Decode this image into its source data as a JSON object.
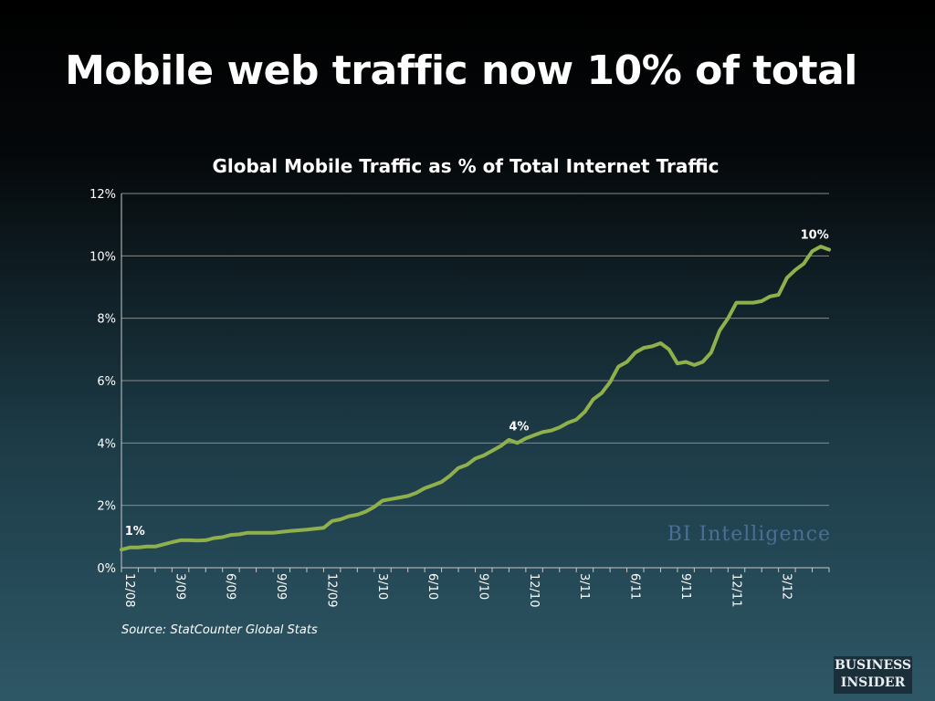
{
  "slide": {
    "title": "Mobile web traffic now 10% of total",
    "source": "Source: StatCounter Global Stats",
    "watermark": "BI Intelligence",
    "logo_line1": "BUSINESS",
    "logo_line2": "INSIDER"
  },
  "chart_data": {
    "type": "line",
    "title": "Global Mobile Traffic as % of Total Internet Traffic",
    "xlabel": "",
    "ylabel": "",
    "ylim": [
      0,
      12
    ],
    "y_ticks": [
      "0%",
      "2%",
      "4%",
      "6%",
      "8%",
      "10%",
      "12%"
    ],
    "x_ticks": [
      {
        "label": "12/08",
        "index": 0
      },
      {
        "label": "3/09",
        "index": 3
      },
      {
        "label": "6/09",
        "index": 6
      },
      {
        "label": "9/09",
        "index": 9
      },
      {
        "label": "12/09",
        "index": 12
      },
      {
        "label": "3/10",
        "index": 15
      },
      {
        "label": "6/10",
        "index": 18
      },
      {
        "label": "9/10",
        "index": 21
      },
      {
        "label": "12/10",
        "index": 24
      },
      {
        "label": "3/11",
        "index": 27
      },
      {
        "label": "6/11",
        "index": 30
      },
      {
        "label": "9/11",
        "index": 33
      },
      {
        "label": "12/11",
        "index": 36
      },
      {
        "label": "3/12",
        "index": 39
      }
    ],
    "x_max_index": 42,
    "grid": true,
    "line_color": "#8fb04a",
    "series": [
      {
        "x": [
          0,
          0.5,
          1,
          1.5,
          2,
          2.5,
          3,
          3.5,
          4,
          4.5,
          5,
          5.5,
          6,
          6.5,
          7,
          7.5,
          8,
          8.5,
          9,
          9.5,
          10,
          10.5,
          11,
          11.5,
          12,
          12.5,
          13,
          13.5,
          14,
          14.5,
          15,
          15.5,
          16,
          16.5,
          17,
          17.5,
          18,
          18.5,
          19,
          19.5,
          20,
          20.5,
          21,
          21.5,
          22,
          22.5,
          23,
          23.5,
          24,
          24.5,
          25,
          25.5,
          26,
          26.5,
          27,
          27.5,
          28,
          28.5,
          29,
          29.5,
          30,
          30.5,
          31,
          31.5,
          32,
          32.5,
          33,
          33.5,
          34,
          34.5,
          35,
          35.5,
          36,
          36.5,
          37,
          37.5,
          38,
          38.5,
          39,
          39.5,
          40,
          40.5,
          41,
          41.5,
          42
        ],
        "values": [
          0.58,
          0.65,
          0.65,
          0.68,
          0.68,
          0.75,
          0.82,
          0.88,
          0.88,
          0.87,
          0.88,
          0.95,
          0.98,
          1.05,
          1.07,
          1.12,
          1.12,
          1.12,
          1.12,
          1.15,
          1.18,
          1.2,
          1.22,
          1.25,
          1.28,
          1.5,
          1.55,
          1.65,
          1.7,
          1.8,
          1.95,
          2.15,
          2.2,
          2.25,
          2.3,
          2.4,
          2.55,
          2.65,
          2.75,
          2.95,
          3.2,
          3.3,
          3.5,
          3.6,
          3.75,
          3.9,
          4.1,
          4.0,
          4.15,
          4.25,
          4.35,
          4.4,
          4.5,
          4.65,
          4.75,
          5.0,
          5.4,
          5.6,
          5.95,
          6.45,
          6.6,
          6.9,
          7.05,
          7.1,
          7.2,
          7.0,
          6.55,
          6.6,
          6.5,
          6.6,
          6.9,
          7.6,
          8.0,
          8.5,
          8.5,
          8.5,
          8.55,
          8.7,
          8.75,
          9.3,
          9.55,
          9.75,
          10.15,
          10.3,
          10.2
        ]
      }
    ],
    "annotations": [
      {
        "text": "1%",
        "index": 0.2,
        "value": 1.05
      },
      {
        "text": "4%",
        "index": 23,
        "value": 4.4
      },
      {
        "text": "10%",
        "index": 40.3,
        "value": 10.55
      }
    ]
  }
}
